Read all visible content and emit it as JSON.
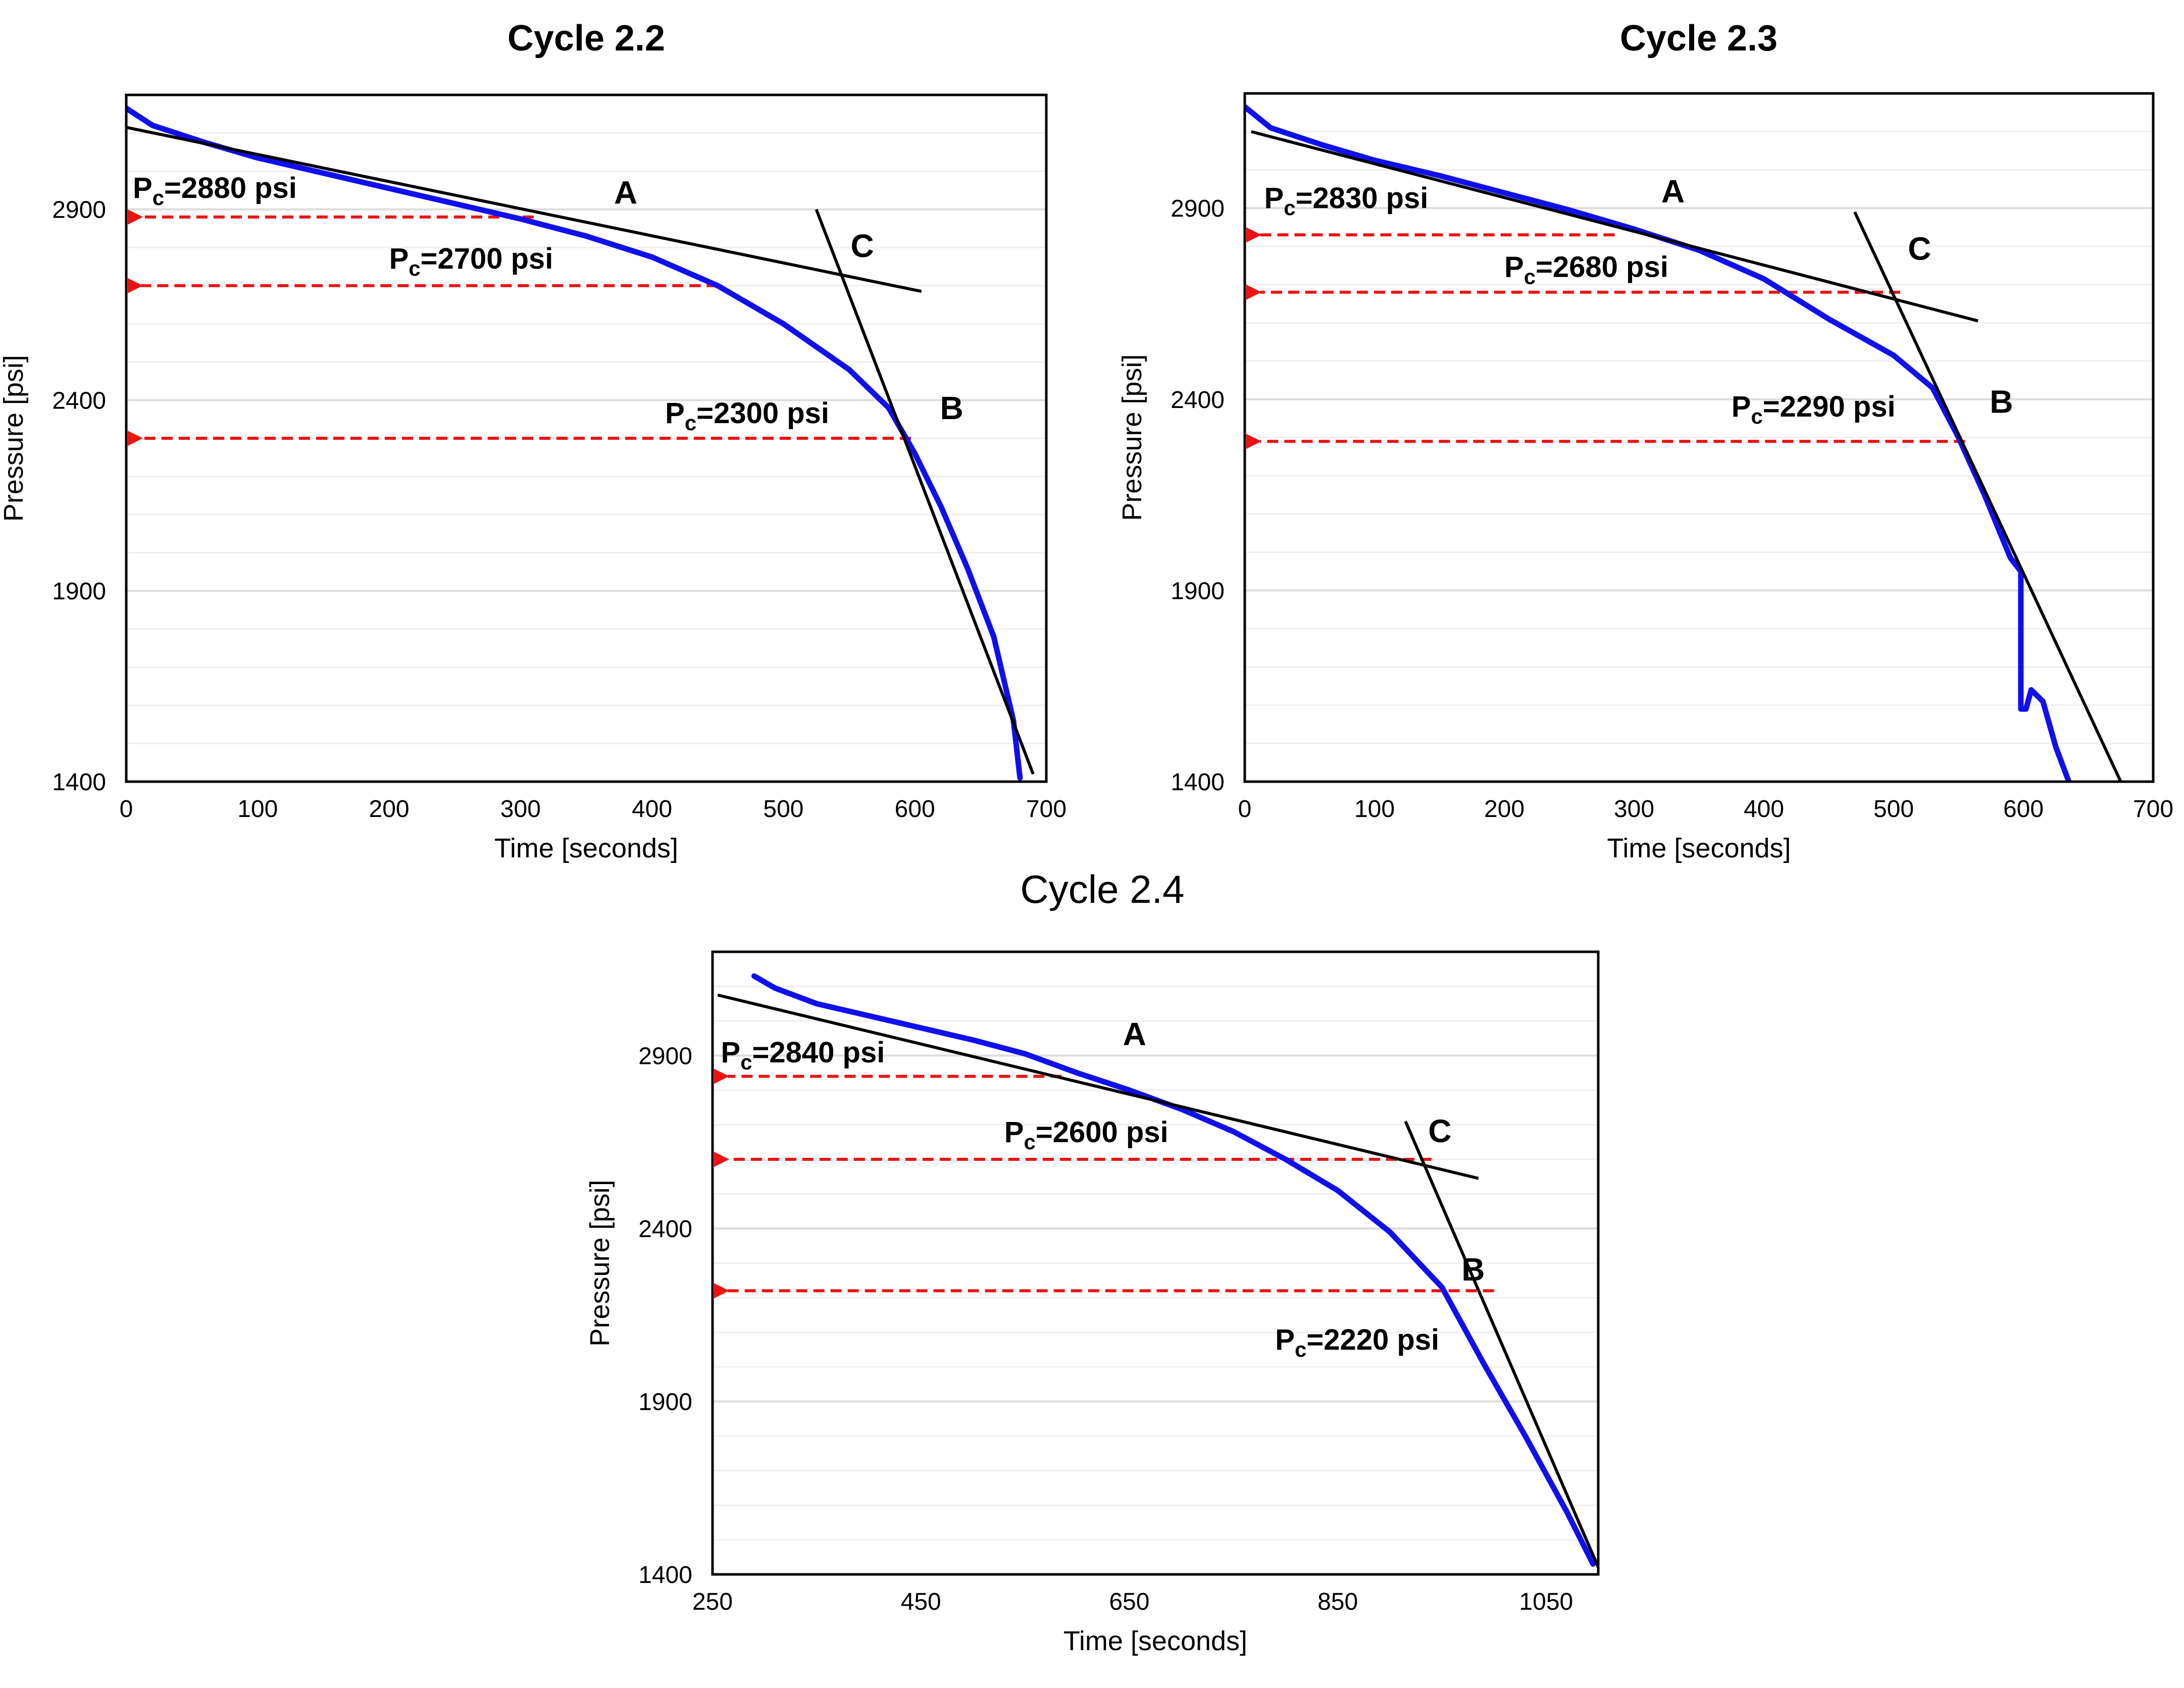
{
  "colors": {
    "curve": "#1010ee",
    "fit_line": "#000000",
    "arrow": "#ee1111",
    "grid": "#e6e6e6",
    "frame": "#000000"
  },
  "chart_data": [
    {
      "type": "line",
      "title": "Cycle 2.2",
      "title_bold": true,
      "xlabel": "Time [seconds]",
      "ylabel": "Pressure [psi]",
      "xlim": [
        0,
        700
      ],
      "ylim": [
        1400,
        3200
      ],
      "xticks": [
        0,
        100,
        200,
        300,
        400,
        500,
        600,
        700
      ],
      "yticks": [
        1400,
        1900,
        2400,
        2900
      ],
      "series": [
        {
          "name": "Pressure",
          "points": [
            [
              0,
              3165
            ],
            [
              20,
              3120
            ],
            [
              60,
              3075
            ],
            [
              100,
              3035
            ],
            [
              150,
              2995
            ],
            [
              200,
              2955
            ],
            [
              250,
              2915
            ],
            [
              300,
              2875
            ],
            [
              350,
              2830
            ],
            [
              400,
              2775
            ],
            [
              450,
              2700
            ],
            [
              500,
              2600
            ],
            [
              550,
              2480
            ],
            [
              580,
              2380
            ],
            [
              600,
              2260
            ],
            [
              620,
              2120
            ],
            [
              640,
              1960
            ],
            [
              660,
              1780
            ],
            [
              675,
              1560
            ],
            [
              680,
              1410
            ]
          ]
        }
      ],
      "fit_lines": [
        {
          "name": "A",
          "x": [
            0,
            605
          ],
          "y": [
            3115,
            2685
          ]
        },
        {
          "name": "B",
          "x": [
            525,
            690
          ],
          "y": [
            2900,
            1420
          ]
        }
      ],
      "annotations": [
        {
          "text": "A",
          "x": 380,
          "y": 2915
        },
        {
          "text": "B",
          "x": 628,
          "y": 2350
        },
        {
          "text": "C",
          "x": 560,
          "y": 2775
        }
      ],
      "critical_pressures": [
        {
          "prefix": "P",
          "sub": "c",
          "suffix": "=2880 psi",
          "value": 2880,
          "from_x": 310,
          "label_x": 5,
          "label_y": 2930
        },
        {
          "prefix": "P",
          "sub": "c",
          "suffix": "=2700 psi",
          "value": 2700,
          "from_x": 450,
          "label_x": 200,
          "label_y": 2745
        },
        {
          "prefix": "P",
          "sub": "c",
          "suffix": "=2300 psi",
          "value": 2300,
          "from_x": 597,
          "label_x": 410,
          "label_y": 2340
        }
      ]
    },
    {
      "type": "line",
      "title": "Cycle 2.3",
      "title_bold": true,
      "xlabel": "Time [seconds]",
      "ylabel": "Pressure [psi]",
      "xlim": [
        0,
        700
      ],
      "ylim": [
        1400,
        3200
      ],
      "xticks": [
        0,
        100,
        200,
        300,
        400,
        500,
        600,
        700
      ],
      "yticks": [
        1400,
        1900,
        2400,
        2900
      ],
      "series": [
        {
          "name": "Pressure",
          "points": [
            [
              0,
              3165
            ],
            [
              20,
              3110
            ],
            [
              60,
              3065
            ],
            [
              100,
              3025
            ],
            [
              150,
              2985
            ],
            [
              200,
              2940
            ],
            [
              250,
              2895
            ],
            [
              300,
              2845
            ],
            [
              350,
              2790
            ],
            [
              400,
              2715
            ],
            [
              450,
              2610
            ],
            [
              500,
              2515
            ],
            [
              530,
              2430
            ],
            [
              550,
              2300
            ],
            [
              570,
              2150
            ],
            [
              590,
              1985
            ],
            [
              598,
              1950
            ],
            [
              598,
              1590
            ],
            [
              602,
              1590
            ],
            [
              606,
              1640
            ],
            [
              615,
              1610
            ],
            [
              625,
              1490
            ],
            [
              635,
              1400
            ]
          ]
        }
      ],
      "fit_lines": [
        {
          "name": "A",
          "x": [
            5,
            565
          ],
          "y": [
            3100,
            2605
          ]
        },
        {
          "name": "B",
          "x": [
            470,
            675
          ],
          "y": [
            2890,
            1400
          ]
        }
      ],
      "annotations": [
        {
          "text": "A",
          "x": 330,
          "y": 2915
        },
        {
          "text": "B",
          "x": 583,
          "y": 2365
        },
        {
          "text": "C",
          "x": 520,
          "y": 2765
        }
      ],
      "critical_pressures": [
        {
          "prefix": "P",
          "sub": "c",
          "suffix": "=2830 psi",
          "value": 2830,
          "from_x": 285,
          "label_x": 15,
          "label_y": 2900
        },
        {
          "prefix": "P",
          "sub": "c",
          "suffix": "=2680 psi",
          "value": 2680,
          "from_x": 505,
          "label_x": 200,
          "label_y": 2720
        },
        {
          "prefix": "P",
          "sub": "c",
          "suffix": "=2290 psi",
          "value": 2290,
          "from_x": 555,
          "label_x": 375,
          "label_y": 2355
        }
      ]
    },
    {
      "type": "line",
      "title": "Cycle 2.4",
      "title_bold": false,
      "xlabel": "Time [seconds]",
      "ylabel": "Pressure [psi]",
      "xlim": [
        250,
        1100
      ],
      "ylim": [
        1400,
        3200
      ],
      "xticks": [
        250,
        450,
        650,
        850,
        1050
      ],
      "yticks": [
        1400,
        1900,
        2400,
        2900
      ],
      "series": [
        {
          "name": "Pressure",
          "points": [
            [
              290,
              3130
            ],
            [
              310,
              3095
            ],
            [
              350,
              3050
            ],
            [
              400,
              3015
            ],
            [
              450,
              2980
            ],
            [
              500,
              2945
            ],
            [
              550,
              2905
            ],
            [
              600,
              2850
            ],
            [
              650,
              2800
            ],
            [
              700,
              2745
            ],
            [
              750,
              2680
            ],
            [
              800,
              2600
            ],
            [
              850,
              2510
            ],
            [
              900,
              2390
            ],
            [
              950,
              2230
            ],
            [
              990,
              2010
            ],
            [
              1030,
              1800
            ],
            [
              1070,
              1580
            ],
            [
              1095,
              1430
            ]
          ]
        }
      ],
      "fit_lines": [
        {
          "name": "A",
          "x": [
            255,
            985
          ],
          "y": [
            3075,
            2545
          ]
        },
        {
          "name": "B",
          "x": [
            915,
            1103
          ],
          "y": [
            2710,
            1400
          ]
        }
      ],
      "annotations": [
        {
          "text": "A",
          "x": 655,
          "y": 2930
        },
        {
          "text": "B",
          "x": 980,
          "y": 2250
        },
        {
          "text": "C",
          "x": 948,
          "y": 2650
        }
      ],
      "critical_pressures": [
        {
          "prefix": "P",
          "sub": "c",
          "suffix": "=2840 psi",
          "value": 2840,
          "from_x": 585,
          "label_x": 258,
          "label_y": 2880
        },
        {
          "prefix": "P",
          "sub": "c",
          "suffix": "=2600 psi",
          "value": 2600,
          "from_x": 940,
          "label_x": 530,
          "label_y": 2650
        },
        {
          "prefix": "P",
          "sub": "c",
          "suffix": "=2220 psi",
          "value": 2220,
          "from_x": 1000,
          "label_x": 790,
          "label_y": 2050
        }
      ]
    }
  ]
}
